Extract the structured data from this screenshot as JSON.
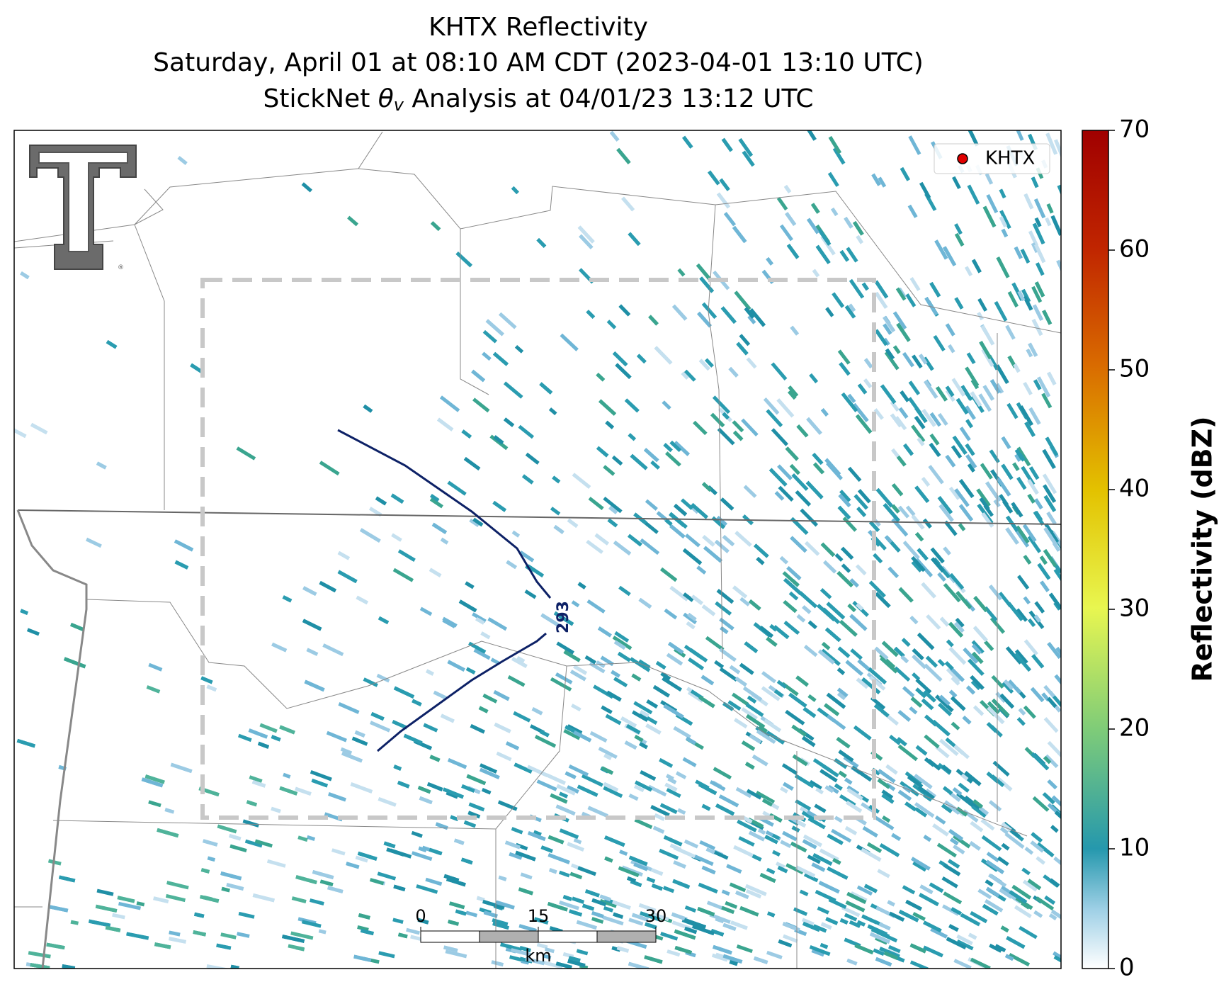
{
  "header": {
    "title": [
      "KHTX Reflectivity",
      "Saturday, April 01 at 08:10 AM CDT (2023-04-01 13:10 UTC)",
      [
        "StickNet ",
        "θ",
        "v",
        " Analysis at 04/01/23 13:12 UTC"
      ]
    ]
  },
  "colorbar": {
    "label": "Reflectivity (dBZ)",
    "lim": [
      0,
      70
    ],
    "ticks": [
      0,
      10,
      20,
      30,
      40,
      50,
      60,
      70
    ]
  },
  "legend": {
    "label": "KHTX"
  },
  "contour": {
    "label": "293"
  },
  "scale_bar": {
    "ticks": [
      0,
      15,
      30
    ],
    "unit": "km"
  }
}
